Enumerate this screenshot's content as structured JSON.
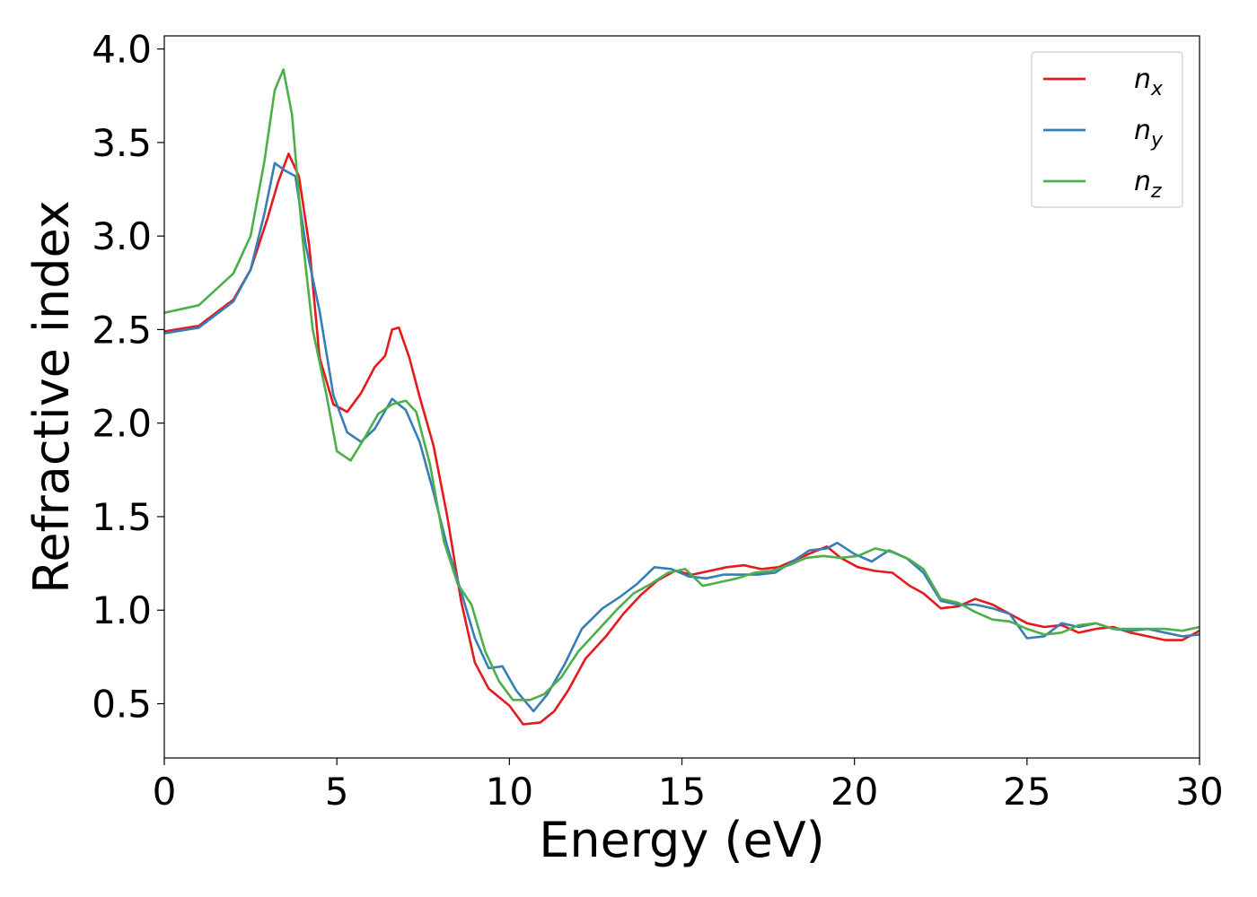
{
  "chart_data": {
    "type": "line",
    "xlabel": "Energy (eV)",
    "ylabel": "Refractive index",
    "xlim": [
      0,
      30
    ],
    "ylim": [
      0.21,
      4.07
    ],
    "xticks": [
      0,
      5,
      10,
      15,
      20,
      25,
      30
    ],
    "yticks": [
      0.5,
      1.0,
      1.5,
      2.0,
      2.5,
      3.0,
      3.5,
      4.0
    ],
    "xtick_labels": [
      "0",
      "5",
      "10",
      "15",
      "20",
      "25",
      "30"
    ],
    "ytick_labels": [
      "0.5",
      "1.0",
      "1.5",
      "2.0",
      "2.5",
      "3.0",
      "3.5",
      "4.0"
    ],
    "grid": false,
    "legend_position": "top-right",
    "series": [
      {
        "name": "n_x",
        "label_base": "n",
        "label_sub": "x",
        "color": "#e41a1c",
        "points": [
          [
            0,
            2.49
          ],
          [
            1,
            2.52
          ],
          [
            2,
            2.66
          ],
          [
            2.5,
            2.82
          ],
          [
            3,
            3.1
          ],
          [
            3.3,
            3.29
          ],
          [
            3.6,
            3.44
          ],
          [
            3.9,
            3.32
          ],
          [
            4.2,
            2.95
          ],
          [
            4.5,
            2.35
          ],
          [
            4.9,
            2.1
          ],
          [
            5.3,
            2.06
          ],
          [
            5.7,
            2.16
          ],
          [
            6.1,
            2.3
          ],
          [
            6.4,
            2.36
          ],
          [
            6.6,
            2.5
          ],
          [
            6.8,
            2.51
          ],
          [
            7.1,
            2.35
          ],
          [
            7.4,
            2.14
          ],
          [
            7.8,
            1.88
          ],
          [
            8.2,
            1.5
          ],
          [
            8.6,
            1.05
          ],
          [
            9.0,
            0.72
          ],
          [
            9.4,
            0.58
          ],
          [
            10.0,
            0.49
          ],
          [
            10.4,
            0.39
          ],
          [
            10.9,
            0.4
          ],
          [
            11.3,
            0.46
          ],
          [
            11.7,
            0.57
          ],
          [
            12.2,
            0.74
          ],
          [
            12.8,
            0.86
          ],
          [
            13.3,
            0.98
          ],
          [
            13.8,
            1.08
          ],
          [
            14.3,
            1.16
          ],
          [
            14.8,
            1.21
          ],
          [
            15.3,
            1.19
          ],
          [
            15.8,
            1.21
          ],
          [
            16.3,
            1.23
          ],
          [
            16.8,
            1.24
          ],
          [
            17.3,
            1.22
          ],
          [
            17.8,
            1.23
          ],
          [
            18.3,
            1.27
          ],
          [
            18.8,
            1.31
          ],
          [
            19.2,
            1.34
          ],
          [
            19.6,
            1.28
          ],
          [
            20.1,
            1.23
          ],
          [
            20.6,
            1.21
          ],
          [
            21.1,
            1.2
          ],
          [
            21.6,
            1.13
          ],
          [
            22.0,
            1.09
          ],
          [
            22.5,
            1.01
          ],
          [
            23.0,
            1.02
          ],
          [
            23.5,
            1.06
          ],
          [
            24.0,
            1.03
          ],
          [
            24.5,
            0.98
          ],
          [
            25.0,
            0.93
          ],
          [
            25.5,
            0.91
          ],
          [
            26.0,
            0.92
          ],
          [
            26.5,
            0.88
          ],
          [
            27.0,
            0.9
          ],
          [
            27.5,
            0.91
          ],
          [
            28.0,
            0.88
          ],
          [
            28.5,
            0.86
          ],
          [
            29.0,
            0.84
          ],
          [
            29.5,
            0.84
          ],
          [
            30.0,
            0.89
          ]
        ]
      },
      {
        "name": "n_y",
        "label_base": "n",
        "label_sub": "y",
        "color": "#377eb8",
        "points": [
          [
            0,
            2.48
          ],
          [
            1,
            2.51
          ],
          [
            2,
            2.65
          ],
          [
            2.5,
            2.82
          ],
          [
            2.9,
            3.12
          ],
          [
            3.2,
            3.39
          ],
          [
            3.5,
            3.35
          ],
          [
            3.8,
            3.32
          ],
          [
            4.1,
            2.95
          ],
          [
            4.5,
            2.6
          ],
          [
            4.9,
            2.15
          ],
          [
            5.3,
            1.95
          ],
          [
            5.7,
            1.9
          ],
          [
            6.1,
            1.97
          ],
          [
            6.6,
            2.13
          ],
          [
            7.0,
            2.07
          ],
          [
            7.4,
            1.9
          ],
          [
            7.8,
            1.63
          ],
          [
            8.2,
            1.34
          ],
          [
            8.6,
            1.1
          ],
          [
            9.0,
            0.85
          ],
          [
            9.4,
            0.69
          ],
          [
            9.8,
            0.7
          ],
          [
            10.2,
            0.57
          ],
          [
            10.7,
            0.46
          ],
          [
            11.1,
            0.55
          ],
          [
            11.6,
            0.71
          ],
          [
            12.1,
            0.9
          ],
          [
            12.7,
            1.01
          ],
          [
            13.2,
            1.07
          ],
          [
            13.7,
            1.14
          ],
          [
            14.2,
            1.23
          ],
          [
            14.7,
            1.22
          ],
          [
            15.2,
            1.18
          ],
          [
            15.7,
            1.17
          ],
          [
            16.2,
            1.19
          ],
          [
            16.7,
            1.19
          ],
          [
            17.2,
            1.19
          ],
          [
            17.7,
            1.2
          ],
          [
            18.2,
            1.26
          ],
          [
            18.7,
            1.32
          ],
          [
            19.2,
            1.33
          ],
          [
            19.5,
            1.36
          ],
          [
            20.0,
            1.3
          ],
          [
            20.5,
            1.26
          ],
          [
            21.0,
            1.32
          ],
          [
            21.5,
            1.28
          ],
          [
            22.0,
            1.2
          ],
          [
            22.5,
            1.05
          ],
          [
            23.0,
            1.03
          ],
          [
            23.5,
            1.03
          ],
          [
            24.0,
            1.01
          ],
          [
            24.5,
            0.98
          ],
          [
            25.0,
            0.85
          ],
          [
            25.5,
            0.86
          ],
          [
            26.0,
            0.93
          ],
          [
            26.5,
            0.91
          ],
          [
            27.0,
            0.93
          ],
          [
            27.5,
            0.9
          ],
          [
            28.0,
            0.89
          ],
          [
            28.5,
            0.9
          ],
          [
            29.0,
            0.88
          ],
          [
            29.5,
            0.86
          ],
          [
            30.0,
            0.87
          ]
        ]
      },
      {
        "name": "n_z",
        "label_base": "n",
        "label_sub": "z",
        "color": "#4daf4a",
        "points": [
          [
            0,
            2.59
          ],
          [
            1,
            2.63
          ],
          [
            2,
            2.8
          ],
          [
            2.5,
            3.0
          ],
          [
            2.9,
            3.4
          ],
          [
            3.2,
            3.78
          ],
          [
            3.45,
            3.89
          ],
          [
            3.7,
            3.65
          ],
          [
            4.0,
            3.0
          ],
          [
            4.3,
            2.5
          ],
          [
            4.7,
            2.15
          ],
          [
            5.0,
            1.85
          ],
          [
            5.4,
            1.8
          ],
          [
            5.8,
            1.92
          ],
          [
            6.2,
            2.05
          ],
          [
            6.6,
            2.1
          ],
          [
            7.0,
            2.12
          ],
          [
            7.3,
            2.06
          ],
          [
            7.7,
            1.78
          ],
          [
            8.1,
            1.37
          ],
          [
            8.5,
            1.14
          ],
          [
            8.9,
            1.03
          ],
          [
            9.3,
            0.78
          ],
          [
            9.7,
            0.62
          ],
          [
            10.1,
            0.52
          ],
          [
            10.6,
            0.52
          ],
          [
            11.0,
            0.55
          ],
          [
            11.5,
            0.64
          ],
          [
            12.0,
            0.78
          ],
          [
            12.6,
            0.9
          ],
          [
            13.1,
            1.0
          ],
          [
            13.6,
            1.09
          ],
          [
            14.1,
            1.14
          ],
          [
            14.6,
            1.2
          ],
          [
            15.1,
            1.22
          ],
          [
            15.6,
            1.13
          ],
          [
            16.1,
            1.15
          ],
          [
            16.6,
            1.17
          ],
          [
            17.1,
            1.2
          ],
          [
            17.6,
            1.21
          ],
          [
            18.1,
            1.24
          ],
          [
            18.6,
            1.28
          ],
          [
            19.1,
            1.29
          ],
          [
            19.6,
            1.28
          ],
          [
            20.1,
            1.29
          ],
          [
            20.6,
            1.33
          ],
          [
            21.1,
            1.31
          ],
          [
            21.6,
            1.27
          ],
          [
            22.0,
            1.22
          ],
          [
            22.5,
            1.06
          ],
          [
            23.0,
            1.04
          ],
          [
            23.5,
            0.99
          ],
          [
            24.0,
            0.95
          ],
          [
            24.5,
            0.94
          ],
          [
            25.0,
            0.9
          ],
          [
            25.5,
            0.87
          ],
          [
            26.0,
            0.88
          ],
          [
            26.5,
            0.92
          ],
          [
            27.0,
            0.93
          ],
          [
            27.5,
            0.9
          ],
          [
            28.0,
            0.9
          ],
          [
            28.5,
            0.9
          ],
          [
            29.0,
            0.9
          ],
          [
            29.5,
            0.89
          ],
          [
            30.0,
            0.91
          ]
        ]
      }
    ]
  }
}
